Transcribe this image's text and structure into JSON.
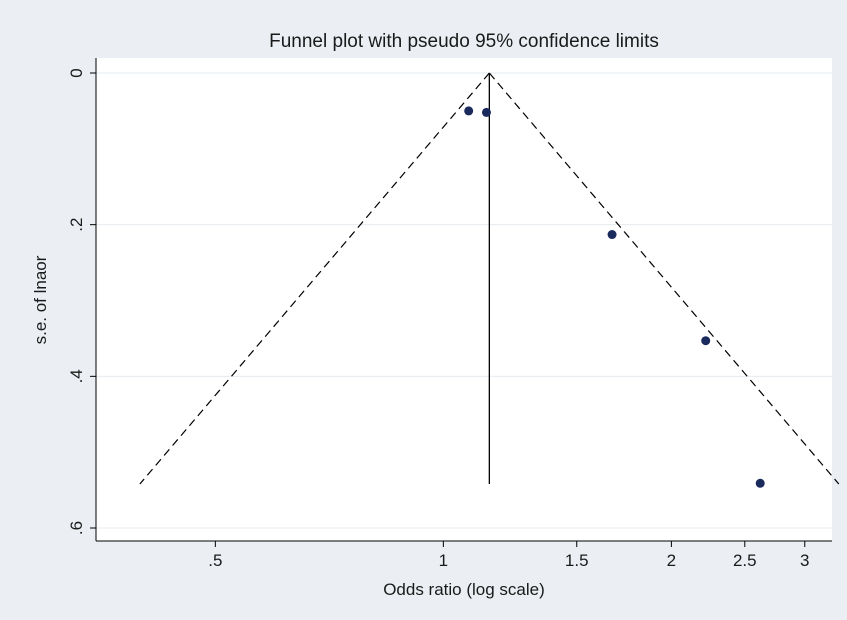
{
  "chart_data": {
    "type": "scatter",
    "title": "Funnel plot with pseudo 95% confidence limits",
    "xlabel": "Odds ratio (log scale)",
    "ylabel": "s.e. of lnaor",
    "x_scale": "log",
    "y_inverted": true,
    "xlim": [
      0.35,
      3.2
    ],
    "ylim": [
      0,
      0.61
    ],
    "x_ticks": [
      {
        "value": 0.5,
        "label": ".5"
      },
      {
        "value": 1,
        "label": "1"
      },
      {
        "value": 1.5,
        "label": "1.5"
      },
      {
        "value": 2,
        "label": "2"
      },
      {
        "value": 2.5,
        "label": "2.5"
      },
      {
        "value": 3,
        "label": "3"
      }
    ],
    "y_ticks": [
      {
        "value": 0,
        "label": "0"
      },
      {
        "value": 0.2,
        "label": ".2"
      },
      {
        "value": 0.4,
        "label": ".4"
      },
      {
        "value": 0.6,
        "label": ".6"
      }
    ],
    "grid": true,
    "pooled_or": 1.15,
    "funnel_max_se": 0.542,
    "points": [
      {
        "x": 1.08,
        "y": 0.05
      },
      {
        "x": 1.14,
        "y": 0.052
      },
      {
        "x": 1.67,
        "y": 0.213
      },
      {
        "x": 2.22,
        "y": 0.353
      },
      {
        "x": 2.62,
        "y": 0.541
      }
    ],
    "colors": {
      "background": "#ebeff3",
      "plot_area": "#ffffff",
      "grid": "#e6ebf0",
      "points": "#1b2a5c",
      "lines": "#000000"
    }
  }
}
